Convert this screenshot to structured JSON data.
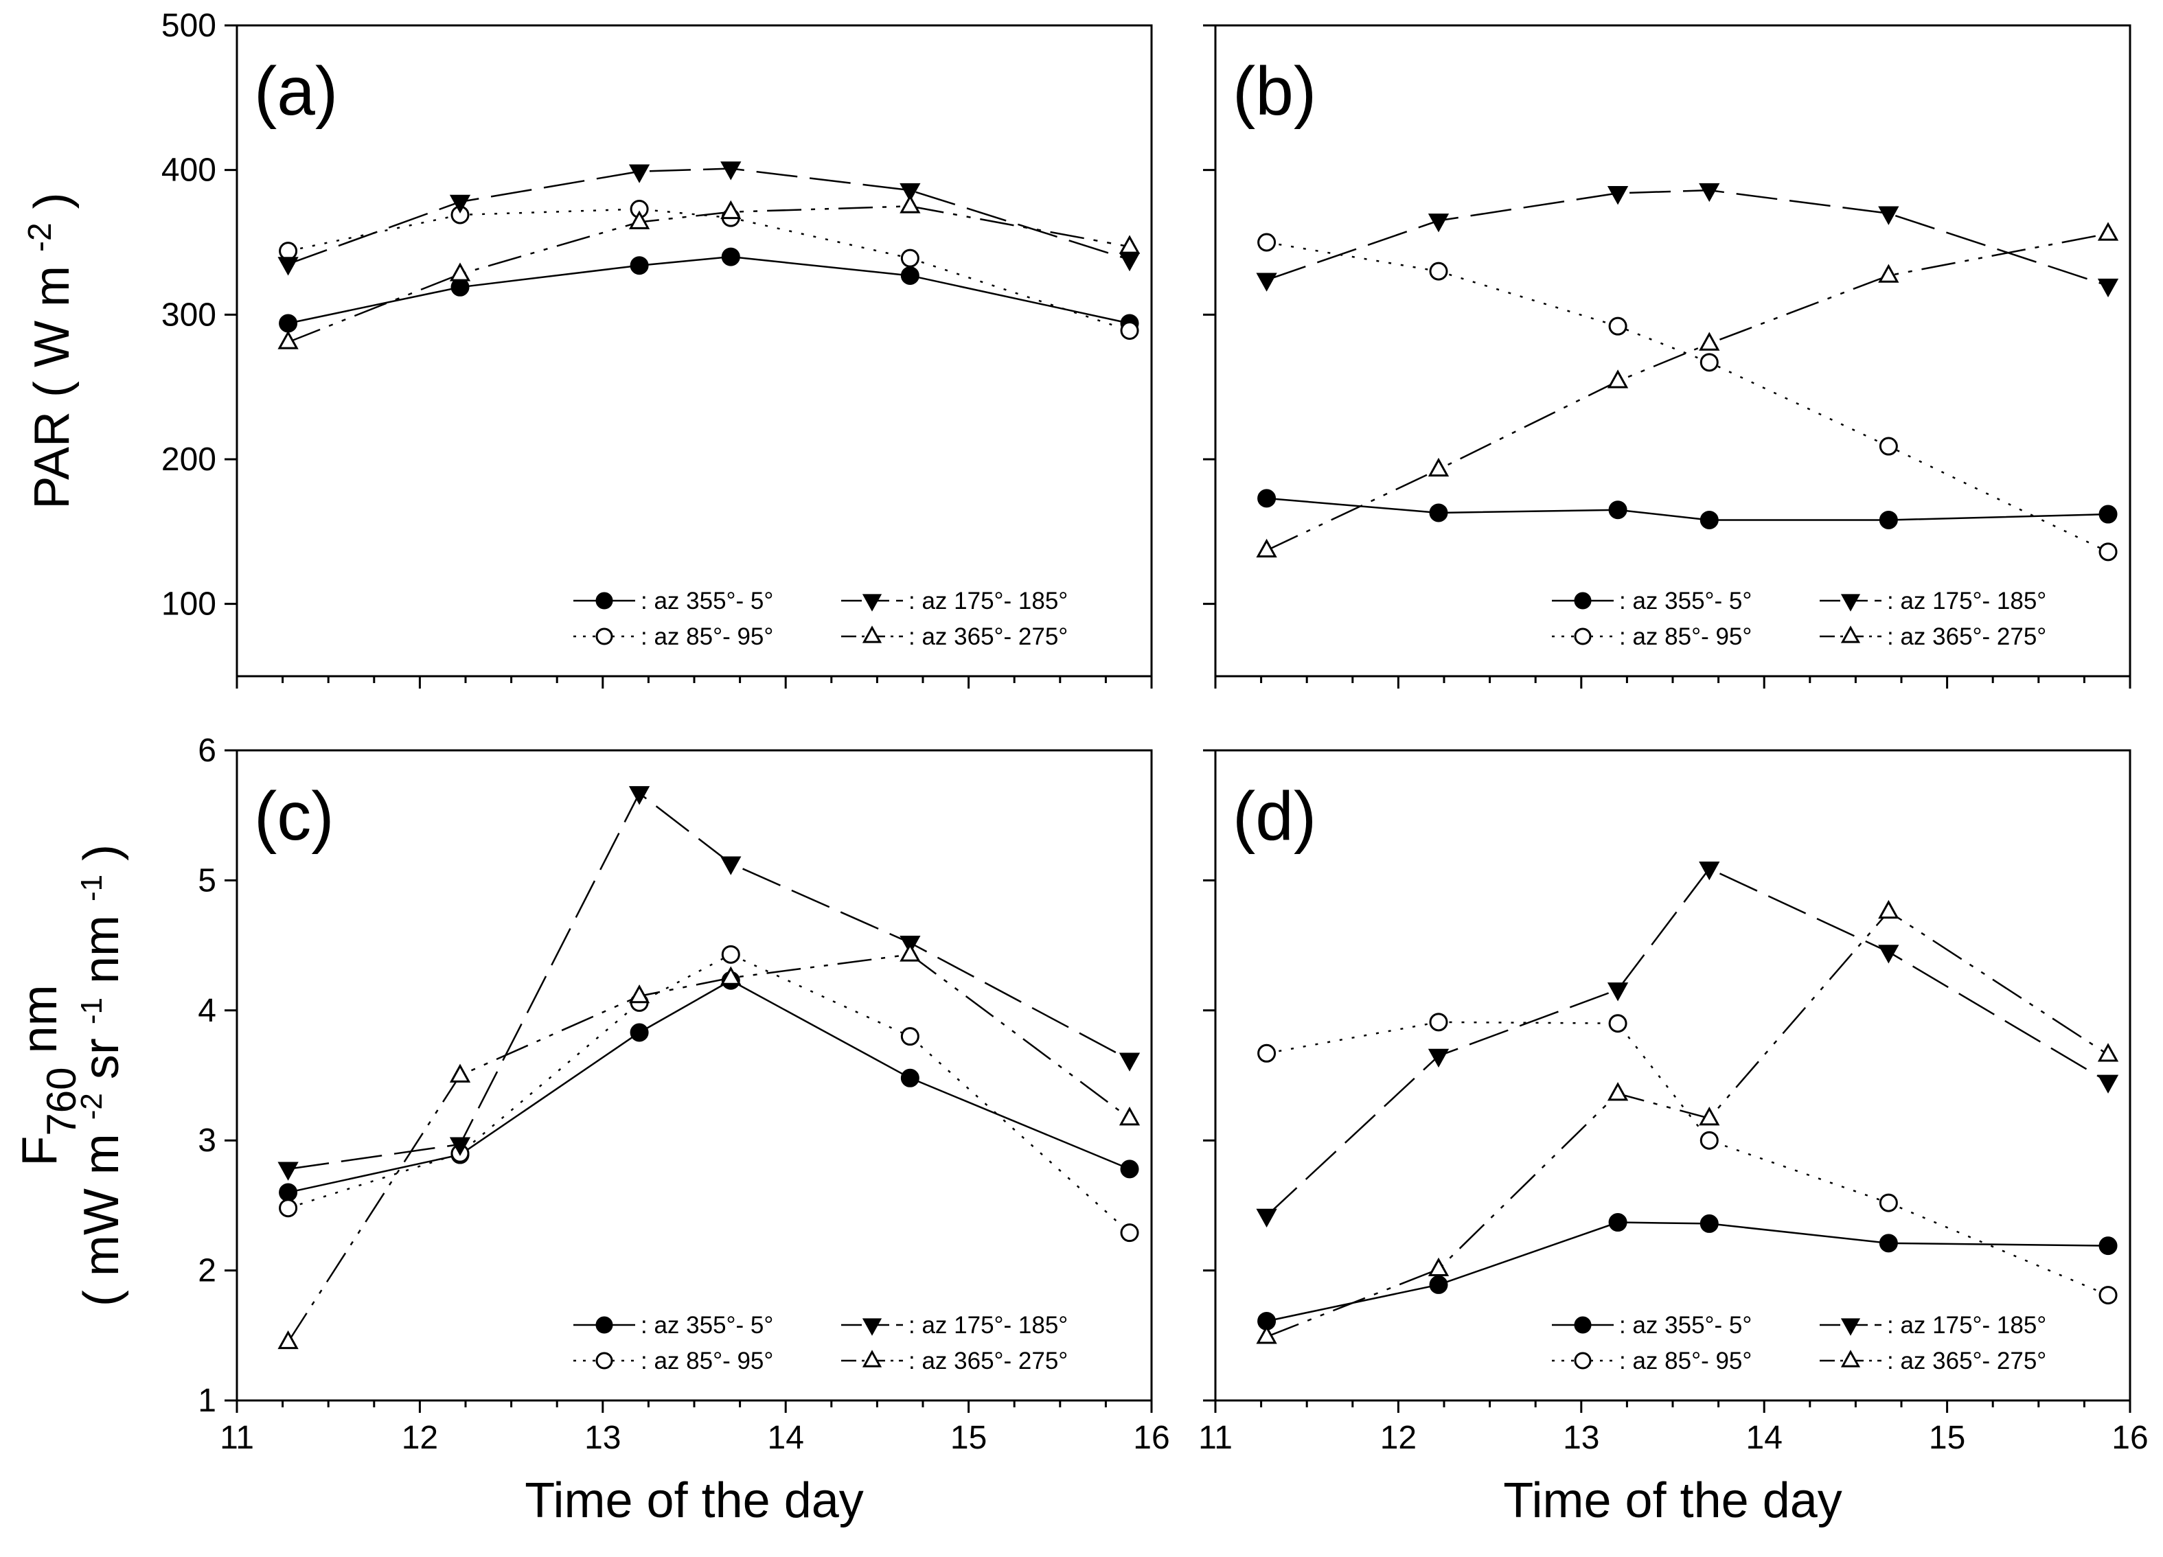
{
  "chart_data": [
    {
      "type": "line",
      "panel": "(a)",
      "ylabel": "PAR ( W m -2 )",
      "xlabel": "",
      "xlim": [
        11,
        16
      ],
      "ylim": [
        50,
        500
      ],
      "xticks": [
        11,
        12,
        13,
        14,
        15,
        16
      ],
      "yticks": [
        100,
        200,
        300,
        400,
        500
      ],
      "x": [
        11.28,
        12.22,
        13.2,
        13.7,
        14.68,
        15.88
      ],
      "series": [
        {
          "name": ": az 355°- 5°",
          "values": [
            294,
            319,
            334,
            340,
            327,
            294
          ]
        },
        {
          "name": ": az 85°- 95°",
          "values": [
            344,
            369,
            373,
            367,
            339,
            289
          ]
        },
        {
          "name": ": az 175°- 185°",
          "values": [
            335,
            378,
            399,
            401,
            386,
            338
          ]
        },
        {
          "name": ": az 365°- 275°",
          "values": [
            281,
            328,
            364,
            371,
            375,
            347
          ]
        }
      ]
    },
    {
      "type": "line",
      "panel": "(b)",
      "ylabel": "",
      "xlabel": "",
      "xlim": [
        11,
        16
      ],
      "ylim": [
        50,
        500
      ],
      "xticks": [
        11,
        12,
        13,
        14,
        15,
        16
      ],
      "yticks": [
        100,
        200,
        300,
        400,
        500
      ],
      "x": [
        11.28,
        12.22,
        13.2,
        13.7,
        14.68,
        15.88
      ],
      "series": [
        {
          "name": ": az 355°- 5°",
          "values": [
            173,
            163,
            165,
            158,
            158,
            162
          ]
        },
        {
          "name": ": az 85°- 95°",
          "values": [
            350,
            330,
            292,
            267,
            209,
            136
          ]
        },
        {
          "name": ": az 175°- 185°",
          "values": [
            324,
            365,
            384,
            386,
            370,
            320
          ]
        },
        {
          "name": ": az 365°- 275°",
          "values": [
            137,
            193,
            254,
            280,
            327,
            356
          ]
        }
      ]
    },
    {
      "type": "line",
      "panel": "(c)",
      "ylabel": "F760 nm ( mW m -2 sr -1 nm -1 )",
      "xlabel": "Time of the day",
      "xlim": [
        11,
        16
      ],
      "ylim": [
        1,
        6
      ],
      "xticks": [
        11,
        12,
        13,
        14,
        15,
        16
      ],
      "yticks": [
        1,
        2,
        3,
        4,
        5,
        6
      ],
      "x": [
        11.28,
        12.22,
        13.2,
        13.7,
        14.68,
        15.88
      ],
      "series": [
        {
          "name": ": az 355°- 5°",
          "values": [
            2.6,
            2.89,
            3.83,
            4.23,
            3.48,
            2.78
          ]
        },
        {
          "name": ": az 85°- 95°",
          "values": [
            2.48,
            2.9,
            4.06,
            4.43,
            3.8,
            2.29
          ]
        },
        {
          "name": ": az 175°- 185°",
          "values": [
            2.78,
            2.97,
            5.67,
            5.13,
            4.52,
            3.62
          ]
        },
        {
          "name": ": az 365°- 275°",
          "values": [
            1.45,
            3.5,
            4.11,
            4.25,
            4.43,
            3.17
          ]
        }
      ]
    },
    {
      "type": "line",
      "panel": "(d)",
      "ylabel": "",
      "xlabel": "Time of the day",
      "xlim": [
        11,
        16
      ],
      "ylim": [
        1,
        6
      ],
      "xticks": [
        11,
        12,
        13,
        14,
        15,
        16
      ],
      "yticks": [
        1,
        2,
        3,
        4,
        5,
        6
      ],
      "x": [
        11.28,
        12.22,
        13.2,
        13.7,
        14.68,
        15.88
      ],
      "series": [
        {
          "name": ": az 355°- 5°",
          "values": [
            1.61,
            1.89,
            2.37,
            2.36,
            2.21,
            2.19
          ]
        },
        {
          "name": ": az 85°- 95°",
          "values": [
            3.67,
            3.91,
            3.9,
            3.0,
            2.52,
            1.81
          ]
        },
        {
          "name": ": az 175°- 185°",
          "values": [
            2.42,
            3.65,
            4.16,
            5.09,
            4.45,
            3.45
          ]
        },
        {
          "name": ": az 365°- 275°",
          "values": [
            1.49,
            2.01,
            3.36,
            3.17,
            4.76,
            3.66
          ]
        }
      ]
    }
  ]
}
